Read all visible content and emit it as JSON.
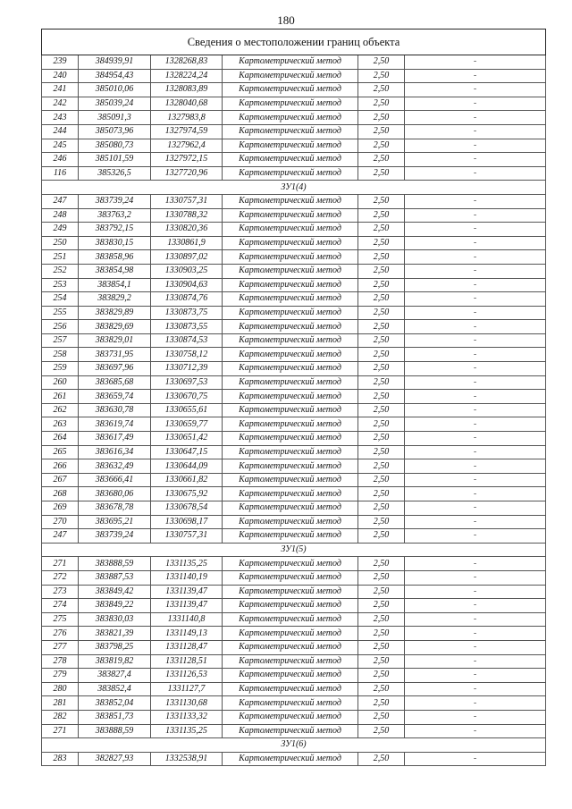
{
  "page_number": "180",
  "table": {
    "title": "Сведения о местоположении границ объекта",
    "rows": [
      {
        "n": "239",
        "x": "384939,91",
        "y": "1328268,83",
        "method": "Картометрический метод",
        "acc": "2,50",
        "note": "-"
      },
      {
        "n": "240",
        "x": "384954,43",
        "y": "1328224,24",
        "method": "Картометрический метод",
        "acc": "2,50",
        "note": "-"
      },
      {
        "n": "241",
        "x": "385010,06",
        "y": "1328083,89",
        "method": "Картометрический метод",
        "acc": "2,50",
        "note": "-"
      },
      {
        "n": "242",
        "x": "385039,24",
        "y": "1328040,68",
        "method": "Картометрический метод",
        "acc": "2,50",
        "note": "-"
      },
      {
        "n": "243",
        "x": "385091,3",
        "y": "1327983,8",
        "method": "Картометрический метод",
        "acc": "2,50",
        "note": "-"
      },
      {
        "n": "244",
        "x": "385073,96",
        "y": "1327974,59",
        "method": "Картометрический метод",
        "acc": "2,50",
        "note": "-"
      },
      {
        "n": "245",
        "x": "385080,73",
        "y": "1327962,4",
        "method": "Картометрический метод",
        "acc": "2,50",
        "note": "-"
      },
      {
        "n": "246",
        "x": "385101,59",
        "y": "1327972,15",
        "method": "Картометрический метод",
        "acc": "2,50",
        "note": "-"
      },
      {
        "n": "116",
        "x": "385326,5",
        "y": "1327720,96",
        "method": "Картометрический метод",
        "acc": "2,50",
        "note": "-"
      },
      {
        "section": "ЗУ1(4)"
      },
      {
        "n": "247",
        "x": "383739,24",
        "y": "1330757,31",
        "method": "Картометрический метод",
        "acc": "2,50",
        "note": "-"
      },
      {
        "n": "248",
        "x": "383763,2",
        "y": "1330788,32",
        "method": "Картометрический метод",
        "acc": "2,50",
        "note": "-"
      },
      {
        "n": "249",
        "x": "383792,15",
        "y": "1330820,36",
        "method": "Картометрический метод",
        "acc": "2,50",
        "note": "-"
      },
      {
        "n": "250",
        "x": "383830,15",
        "y": "1330861,9",
        "method": "Картометрический метод",
        "acc": "2,50",
        "note": "-"
      },
      {
        "n": "251",
        "x": "383858,96",
        "y": "1330897,02",
        "method": "Картометрический метод",
        "acc": "2,50",
        "note": "-"
      },
      {
        "n": "252",
        "x": "383854,98",
        "y": "1330903,25",
        "method": "Картометрический метод",
        "acc": "2,50",
        "note": "-"
      },
      {
        "n": "253",
        "x": "383854,1",
        "y": "1330904,63",
        "method": "Картометрический метод",
        "acc": "2,50",
        "note": "-"
      },
      {
        "n": "254",
        "x": "383829,2",
        "y": "1330874,76",
        "method": "Картометрический метод",
        "acc": "2,50",
        "note": "-"
      },
      {
        "n": "255",
        "x": "383829,89",
        "y": "1330873,75",
        "method": "Картометрический метод",
        "acc": "2,50",
        "note": "-"
      },
      {
        "n": "256",
        "x": "383829,69",
        "y": "1330873,55",
        "method": "Картометрический метод",
        "acc": "2,50",
        "note": "-"
      },
      {
        "n": "257",
        "x": "383829,01",
        "y": "1330874,53",
        "method": "Картометрический метод",
        "acc": "2,50",
        "note": "-"
      },
      {
        "n": "258",
        "x": "383731,95",
        "y": "1330758,12",
        "method": "Картометрический метод",
        "acc": "2,50",
        "note": "-"
      },
      {
        "n": "259",
        "x": "383697,96",
        "y": "1330712,39",
        "method": "Картометрический метод",
        "acc": "2,50",
        "note": "-"
      },
      {
        "n": "260",
        "x": "383685,68",
        "y": "1330697,53",
        "method": "Картометрический метод",
        "acc": "2,50",
        "note": "-"
      },
      {
        "n": "261",
        "x": "383659,74",
        "y": "1330670,75",
        "method": "Картометрический метод",
        "acc": "2,50",
        "note": "-"
      },
      {
        "n": "262",
        "x": "383630,78",
        "y": "1330655,61",
        "method": "Картометрический метод",
        "acc": "2,50",
        "note": "-"
      },
      {
        "n": "263",
        "x": "383619,74",
        "y": "1330659,77",
        "method": "Картометрический метод",
        "acc": "2,50",
        "note": "-"
      },
      {
        "n": "264",
        "x": "383617,49",
        "y": "1330651,42",
        "method": "Картометрический метод",
        "acc": "2,50",
        "note": "-"
      },
      {
        "n": "265",
        "x": "383616,34",
        "y": "1330647,15",
        "method": "Картометрический метод",
        "acc": "2,50",
        "note": "-"
      },
      {
        "n": "266",
        "x": "383632,49",
        "y": "1330644,09",
        "method": "Картометрический метод",
        "acc": "2,50",
        "note": "-"
      },
      {
        "n": "267",
        "x": "383666,41",
        "y": "1330661,82",
        "method": "Картометрический метод",
        "acc": "2,50",
        "note": "-"
      },
      {
        "n": "268",
        "x": "383680,06",
        "y": "1330675,92",
        "method": "Картометрический метод",
        "acc": "2,50",
        "note": "-"
      },
      {
        "n": "269",
        "x": "383678,78",
        "y": "1330678,54",
        "method": "Картометрический метод",
        "acc": "2,50",
        "note": "-"
      },
      {
        "n": "270",
        "x": "383695,21",
        "y": "1330698,17",
        "method": "Картометрический метод",
        "acc": "2,50",
        "note": "-"
      },
      {
        "n": "247",
        "x": "383739,24",
        "y": "1330757,31",
        "method": "Картометрический метод",
        "acc": "2,50",
        "note": "-"
      },
      {
        "section": "ЗУ1(5)"
      },
      {
        "n": "271",
        "x": "383888,59",
        "y": "1331135,25",
        "method": "Картометрический метод",
        "acc": "2,50",
        "note": "-"
      },
      {
        "n": "272",
        "x": "383887,53",
        "y": "1331140,19",
        "method": "Картометрический метод",
        "acc": "2,50",
        "note": "-"
      },
      {
        "n": "273",
        "x": "383849,42",
        "y": "1331139,47",
        "method": "Картометрический метод",
        "acc": "2,50",
        "note": "-"
      },
      {
        "n": "274",
        "x": "383849,22",
        "y": "1331139,47",
        "method": "Картометрический метод",
        "acc": "2,50",
        "note": "-"
      },
      {
        "n": "275",
        "x": "383830,03",
        "y": "1331140,8",
        "method": "Картометрический метод",
        "acc": "2,50",
        "note": "-"
      },
      {
        "n": "276",
        "x": "383821,39",
        "y": "1331149,13",
        "method": "Картометрический метод",
        "acc": "2,50",
        "note": "-"
      },
      {
        "n": "277",
        "x": "383798,25",
        "y": "1331128,47",
        "method": "Картометрический метод",
        "acc": "2,50",
        "note": "-"
      },
      {
        "n": "278",
        "x": "383819,82",
        "y": "1331128,51",
        "method": "Картометрический метод",
        "acc": "2,50",
        "note": "-"
      },
      {
        "n": "279",
        "x": "383827,4",
        "y": "1331126,53",
        "method": "Картометрический метод",
        "acc": "2,50",
        "note": "-"
      },
      {
        "n": "280",
        "x": "383852,4",
        "y": "1331127,7",
        "method": "Картометрический метод",
        "acc": "2,50",
        "note": "-"
      },
      {
        "n": "281",
        "x": "383852,04",
        "y": "1331130,68",
        "method": "Картометрический метод",
        "acc": "2,50",
        "note": "-"
      },
      {
        "n": "282",
        "x": "383851,73",
        "y": "1331133,32",
        "method": "Картометрический метод",
        "acc": "2,50",
        "note": "-"
      },
      {
        "n": "271",
        "x": "383888,59",
        "y": "1331135,25",
        "method": "Картометрический метод",
        "acc": "2,50",
        "note": "-"
      },
      {
        "section": "ЗУ1(6)"
      },
      {
        "n": "283",
        "x": "382827,93",
        "y": "1332538,91",
        "method": "Картометрический метод",
        "acc": "2,50",
        "note": "-"
      }
    ]
  }
}
